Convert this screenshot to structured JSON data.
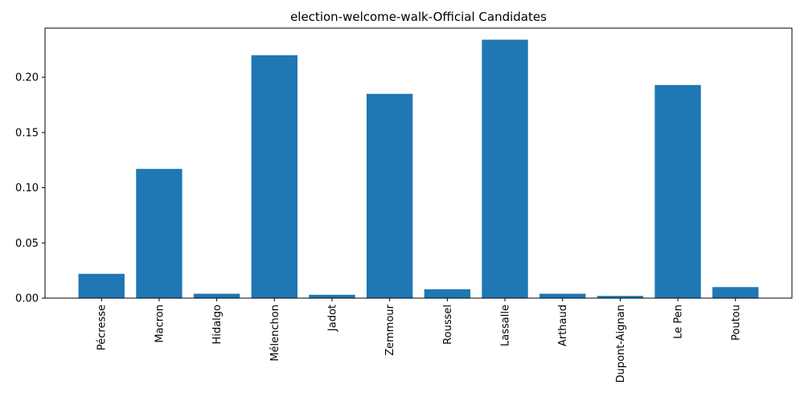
{
  "chart_data": {
    "type": "bar",
    "title": "election-welcome-walk-Official Candidates",
    "xlabel": "",
    "ylabel": "",
    "categories": [
      "Pécresse",
      "Macron",
      "Hidalgo",
      "Mélenchon",
      "Jadot",
      "Zemmour",
      "Roussel",
      "Lassalle",
      "Arthaud",
      "Dupont-Aignan",
      "Le Pen",
      "Poutou"
    ],
    "values": [
      0.022,
      0.117,
      0.004,
      0.22,
      0.003,
      0.185,
      0.008,
      0.234,
      0.004,
      0.002,
      0.193,
      0.01
    ],
    "ylim": [
      0,
      0.2445
    ],
    "yticks": [
      0.0,
      0.05,
      0.1,
      0.15,
      0.2
    ],
    "ytick_labels": [
      "0.00",
      "0.05",
      "0.10",
      "0.15",
      "0.20"
    ],
    "bar_color": "#1f77b4",
    "grid": false,
    "legend": "none"
  }
}
